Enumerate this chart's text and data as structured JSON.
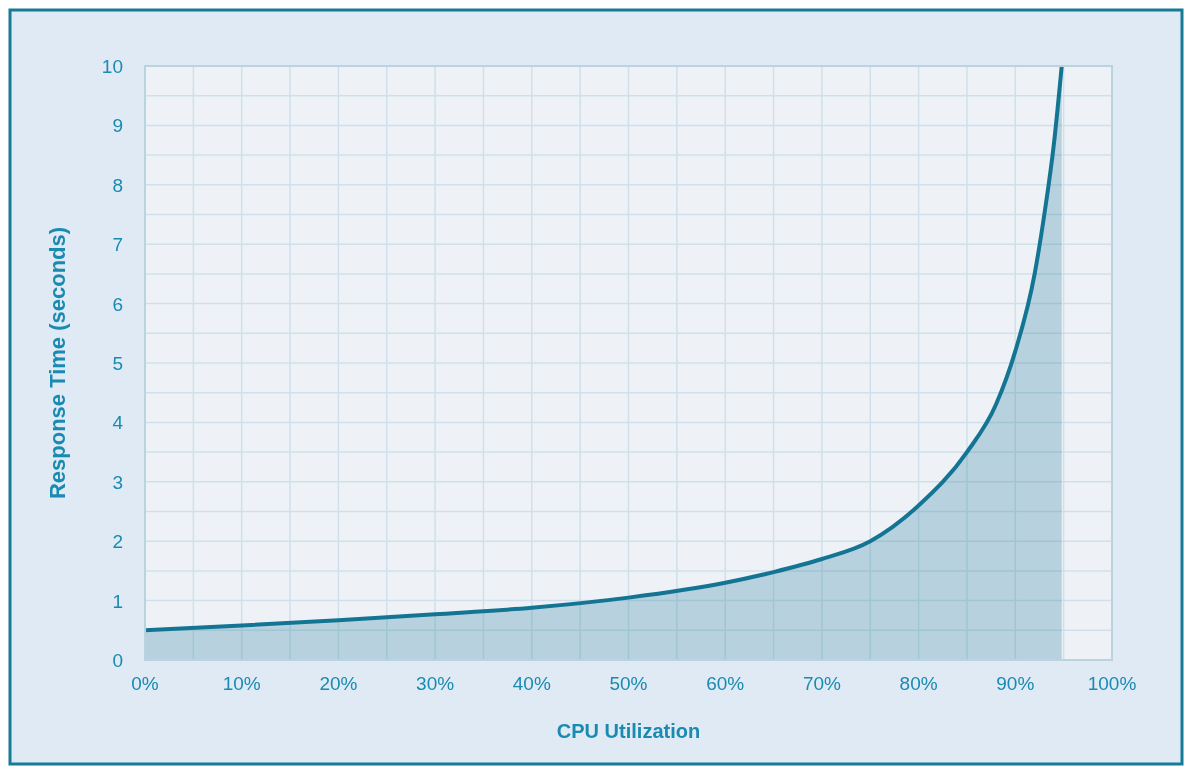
{
  "chart_data": {
    "type": "area",
    "xlabel": "CPU Utilization",
    "ylabel": "Response Time (seconds)",
    "x": [
      0,
      10,
      20,
      30,
      40,
      50,
      60,
      65,
      70,
      75,
      80,
      85,
      88,
      90,
      92,
      93,
      94,
      94.8
    ],
    "series": [
      {
        "color": "#137593",
        "values": [
          0.5,
          0.58,
          0.67,
          0.77,
          0.88,
          1.05,
          1.3,
          1.48,
          1.7,
          2.0,
          2.6,
          3.5,
          4.3,
          5.2,
          6.5,
          7.5,
          8.7,
          10
        ]
      }
    ],
    "xlim": [
      0,
      100
    ],
    "ylim": [
      0,
      10
    ],
    "xticks": [
      {
        "value": 0,
        "label": "0%"
      },
      {
        "value": 5,
        "label": null
      },
      {
        "value": 10,
        "label": "10%"
      },
      {
        "value": 15,
        "label": null
      },
      {
        "value": 20,
        "label": "20%"
      },
      {
        "value": 25,
        "label": null
      },
      {
        "value": 30,
        "label": "30%"
      },
      {
        "value": 35,
        "label": null
      },
      {
        "value": 40,
        "label": "40%"
      },
      {
        "value": 45,
        "label": null
      },
      {
        "value": 50,
        "label": "50%"
      },
      {
        "value": 55,
        "label": null
      },
      {
        "value": 60,
        "label": "60%"
      },
      {
        "value": 65,
        "label": null
      },
      {
        "value": 70,
        "label": "70%"
      },
      {
        "value": 75,
        "label": null
      },
      {
        "value": 80,
        "label": "80%"
      },
      {
        "value": 85,
        "label": null
      },
      {
        "value": 90,
        "label": "90%"
      },
      {
        "value": 95,
        "label": null
      },
      {
        "value": 100,
        "label": "100%"
      }
    ],
    "yticks": [
      0,
      {
        "value": 0.5,
        "label": null
      },
      1,
      {
        "value": 1.5,
        "label": null
      },
      2,
      {
        "value": 2.5,
        "label": null
      },
      3,
      {
        "value": 3.5,
        "label": null
      },
      4,
      {
        "value": 4.5,
        "label": null
      },
      5,
      {
        "value": 5.5,
        "label": null
      },
      6,
      {
        "value": 6.5,
        "label": null
      },
      7,
      {
        "value": 7.5,
        "label": null
      },
      8,
      {
        "value": 8.5,
        "label": null
      },
      9,
      {
        "value": 9.5,
        "label": null
      },
      10
    ],
    "grid": true
  }
}
